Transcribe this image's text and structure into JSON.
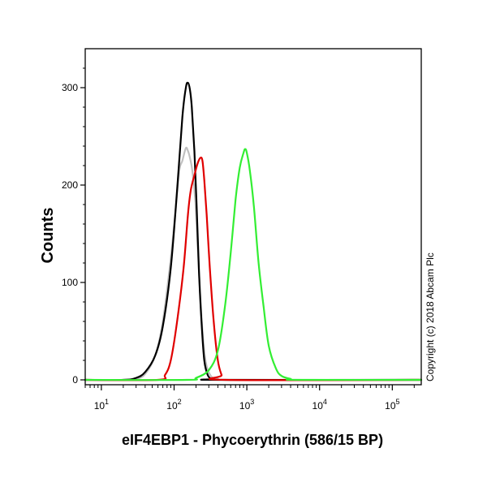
{
  "chart_data": {
    "type": "line",
    "xlabel": "eIF4EBP1 - Phycoerythrin (586/15 BP)",
    "ylabel": "Counts",
    "x_scale": "log",
    "xlim": [
      6,
      250000
    ],
    "ylim": [
      -5,
      340
    ],
    "x_ticks": [
      {
        "value": 10,
        "base": "10",
        "exp": "1"
      },
      {
        "value": 100,
        "base": "10",
        "exp": "2"
      },
      {
        "value": 1000,
        "base": "10",
        "exp": "3"
      },
      {
        "value": 10000,
        "base": "10",
        "exp": "4"
      },
      {
        "value": 100000,
        "base": "10",
        "exp": "5"
      }
    ],
    "y_ticks": [
      {
        "value": 0,
        "label": "0"
      },
      {
        "value": 100,
        "label": "100"
      },
      {
        "value": 200,
        "label": "200"
      },
      {
        "value": 300,
        "label": "300"
      }
    ],
    "grid": false,
    "legend": "none",
    "annotation": "Copyright (c) 2018 Abcam Plc",
    "series": [
      {
        "color": "#c0c0c0",
        "x": [
          20,
          30,
          40,
          55,
          70,
          90,
          105,
          118,
          130,
          145,
          155,
          165,
          178,
          195,
          215,
          240,
          270,
          320,
          400,
          600,
          250000
        ],
        "y": [
          0,
          1,
          6,
          25,
          60,
          125,
          175,
          215,
          225,
          238,
          235,
          228,
          215,
          185,
          125,
          60,
          20,
          4,
          1,
          0,
          0
        ]
      },
      {
        "color": "#000000",
        "x": [
          6,
          20,
          30,
          40,
          55,
          70,
          90,
          110,
          130,
          145,
          155,
          165,
          175,
          190,
          205,
          220,
          240,
          260,
          290,
          330,
          400,
          250000
        ],
        "y": [
          0,
          0,
          2,
          8,
          25,
          55,
          115,
          195,
          270,
          300,
          305,
          298,
          280,
          235,
          175,
          110,
          55,
          20,
          5,
          1,
          0,
          0
        ]
      },
      {
        "color": "#e00000",
        "x": [
          6,
          60,
          75,
          90,
          110,
          135,
          155,
          170,
          190,
          210,
          230,
          245,
          260,
          280,
          310,
          350,
          400,
          450,
          500,
          250000
        ],
        "y": [
          0,
          0,
          5,
          20,
          60,
          115,
          170,
          195,
          210,
          222,
          228,
          225,
          205,
          170,
          115,
          60,
          20,
          5,
          0,
          0
        ]
      },
      {
        "color": "#33ee33",
        "x": [
          6,
          150,
          200,
          300,
          400,
          500,
          600,
          700,
          800,
          900,
          950,
          1000,
          1100,
          1250,
          1450,
          1700,
          2000,
          2500,
          3000,
          4000,
          5000,
          250000
        ],
        "y": [
          0,
          0,
          2,
          10,
          30,
          75,
          130,
          185,
          218,
          233,
          237,
          233,
          215,
          178,
          120,
          75,
          35,
          12,
          4,
          1,
          0,
          0
        ]
      }
    ]
  }
}
